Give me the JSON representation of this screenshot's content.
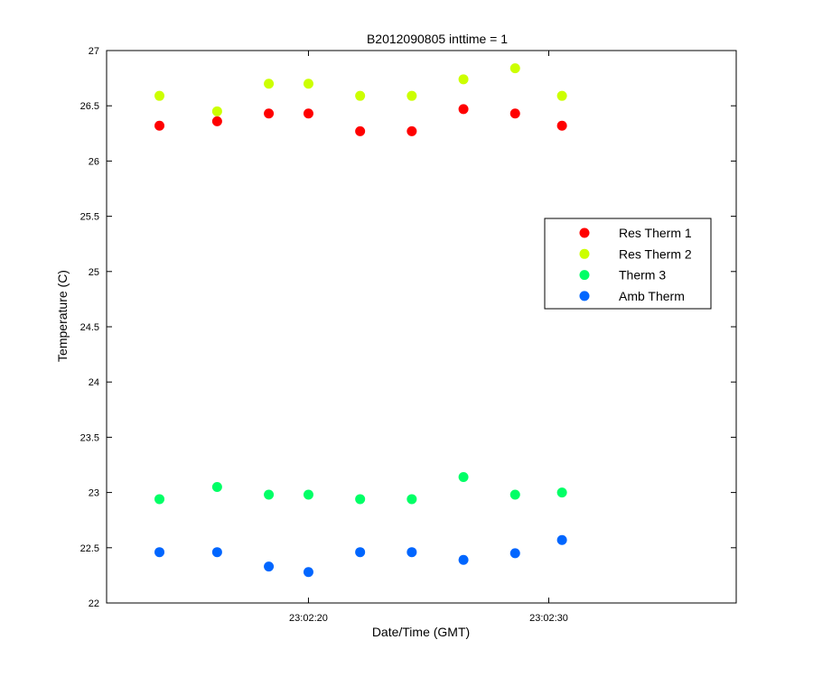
{
  "chart_data": {
    "type": "scatter",
    "title": "B2012090805 inttime = 1",
    "xlabel": "Date/Time (GMT)",
    "ylabel": "Temperature (C)",
    "x_ticks": [
      "23:02:20",
      "23:02:30"
    ],
    "x_tick_seconds": [
      20,
      30
    ],
    "xlim_seconds": [
      11.6,
      37.8
    ],
    "ylim": [
      22,
      27
    ],
    "y_ticks": [
      "22",
      "22.5",
      "23",
      "23.5",
      "24",
      "24.5",
      "25",
      "25.5",
      "26",
      "26.5",
      "27"
    ],
    "grid": false,
    "legend_position": "right",
    "x_seconds": [
      13.8,
      16.2,
      18.35,
      20.0,
      22.15,
      24.3,
      26.45,
      28.6,
      30.55
    ],
    "series": [
      {
        "name": "Res Therm 1",
        "color": "#ff0000",
        "values": [
          26.32,
          26.36,
          26.43,
          26.43,
          26.27,
          26.27,
          26.47,
          26.43,
          26.32
        ]
      },
      {
        "name": "Res Therm 2",
        "color": "#ccff00",
        "values": [
          26.59,
          26.45,
          26.7,
          26.7,
          26.59,
          26.59,
          26.74,
          26.84,
          26.59
        ]
      },
      {
        "name": "Therm 3",
        "color": "#00ff66",
        "values": [
          22.94,
          23.05,
          22.98,
          22.98,
          22.94,
          22.94,
          23.14,
          22.98,
          23.0
        ]
      },
      {
        "name": "Amb Therm",
        "color": "#0066ff",
        "values": [
          22.46,
          22.46,
          22.33,
          22.28,
          22.46,
          22.46,
          22.39,
          22.45,
          22.57
        ]
      }
    ]
  }
}
